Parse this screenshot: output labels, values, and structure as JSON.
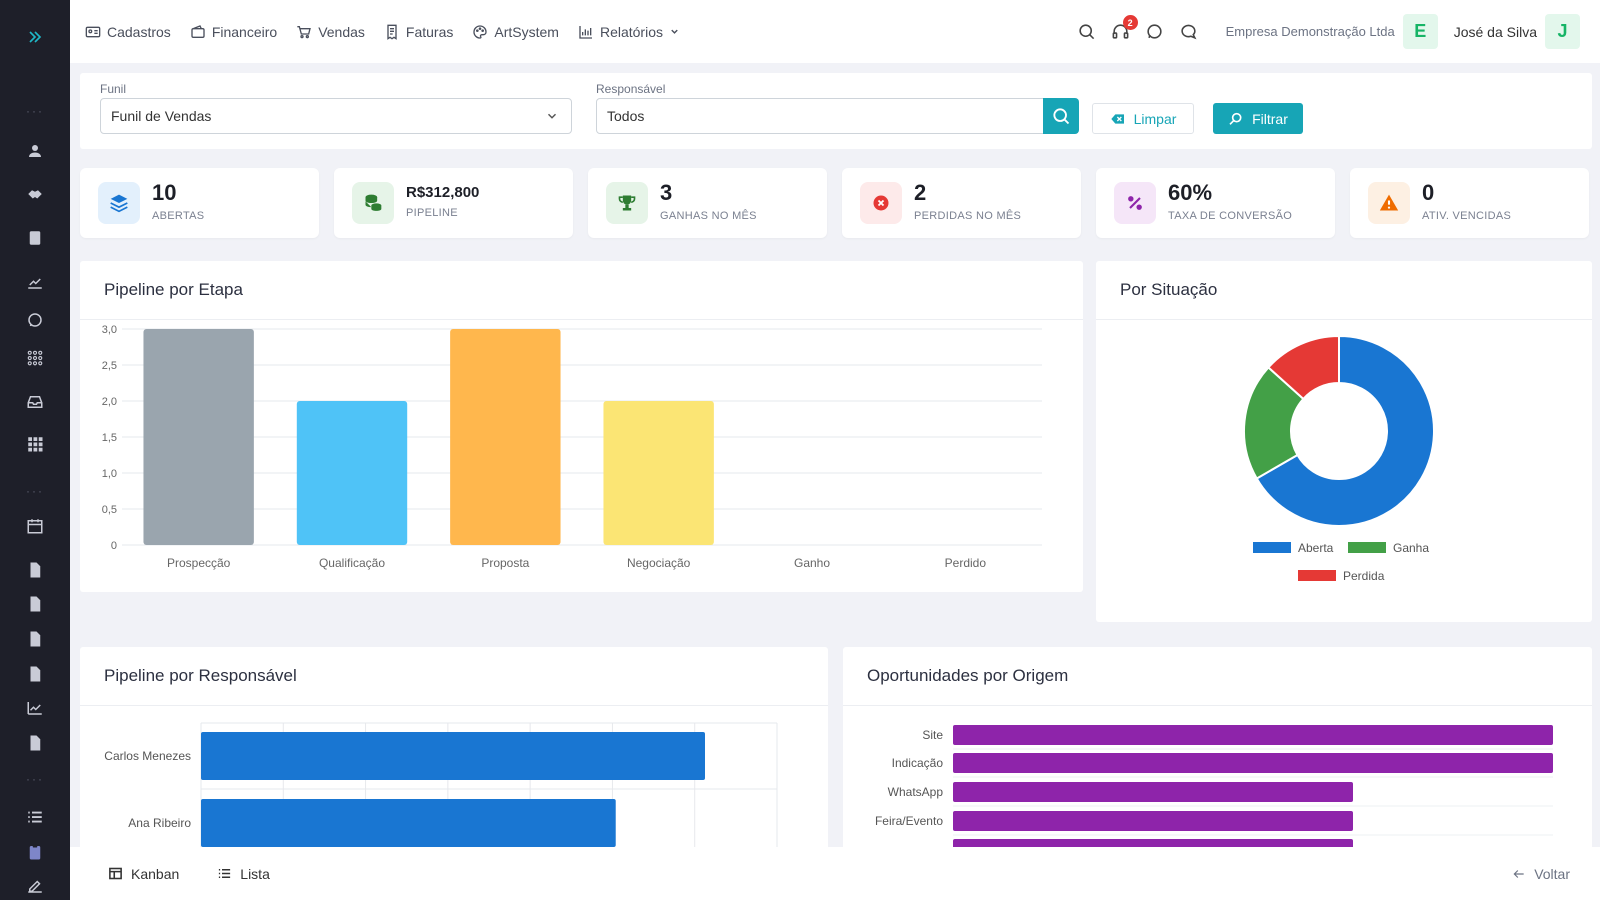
{
  "sidebar": {
    "items": [
      {
        "icon": "chevrons-right-icon"
      },
      {
        "icon": "user-icon"
      },
      {
        "icon": "handshake-icon"
      },
      {
        "icon": "book-icon"
      },
      {
        "icon": "chart-line-icon"
      },
      {
        "icon": "whatsapp-icon"
      },
      {
        "icon": "dots-grid-icon"
      },
      {
        "icon": "inbox-icon"
      },
      {
        "icon": "apps-grid-icon"
      },
      {
        "icon": "calendar-icon"
      },
      {
        "icon": "document-icon"
      },
      {
        "icon": "document-icon"
      },
      {
        "icon": "document-icon"
      },
      {
        "icon": "document-icon"
      },
      {
        "icon": "trend-icon"
      },
      {
        "icon": "document-icon"
      },
      {
        "icon": "list-icon"
      },
      {
        "icon": "clipboard-icon"
      },
      {
        "icon": "signature-icon"
      }
    ],
    "dots": "···"
  },
  "topnav": {
    "items": [
      {
        "label": "Cadastros",
        "icon": "id-card-icon"
      },
      {
        "label": "Financeiro",
        "icon": "wallet-icon"
      },
      {
        "label": "Vendas",
        "icon": "cart-icon"
      },
      {
        "label": "Faturas",
        "icon": "receipt-icon"
      },
      {
        "label": "ArtSystem",
        "icon": "palette-icon"
      },
      {
        "label": "Relatórios",
        "icon": "bar-chart-icon"
      }
    ],
    "notifications_count": "2",
    "company": "Empresa Demonstração Ltda",
    "company_initial": "E",
    "user": "José da Silva",
    "user_initial": "J"
  },
  "filters": {
    "funnel_label": "Funil",
    "funnel_value": "Funil de Vendas",
    "responsible_label": "Responsável",
    "responsible_value": "Todos",
    "clear_label": "Limpar",
    "filter_label": "Filtrar"
  },
  "kpis": [
    {
      "value": "10",
      "label": "ABERTAS",
      "icon": "layers-icon",
      "color": "#1976d2",
      "bg": "#e3f0fc"
    },
    {
      "value": "R$312,800",
      "label": "PIPELINE",
      "icon": "coins-icon",
      "color": "#2e7d32",
      "bg": "#e6f4e8"
    },
    {
      "value": "3",
      "label": "GANHAS NO MÊS",
      "icon": "trophy-icon",
      "color": "#2e7d32",
      "bg": "#e6f4e8"
    },
    {
      "value": "2",
      "label": "PERDIDAS NO MÊS",
      "icon": "x-circle-icon",
      "color": "#e53935",
      "bg": "#fdeaea"
    },
    {
      "value": "60%",
      "label": "TAXA DE CONVERSÃO",
      "icon": "percent-icon",
      "color": "#8e24aa",
      "bg": "#f5e6f8"
    },
    {
      "value": "0",
      "label": "ATIV. VENCIDAS",
      "icon": "warning-icon",
      "color": "#ef6c00",
      "bg": "#fdf0e3"
    }
  ],
  "panels": {
    "stage_title": "Pipeline por Etapa",
    "status_title": "Por Situação",
    "responsible_title": "Pipeline por Responsável",
    "origin_title": "Oportunidades por Origem"
  },
  "chart_data": [
    {
      "type": "bar",
      "categories": [
        "Prospecção",
        "Qualificação",
        "Proposta",
        "Negociação",
        "Ganho",
        "Perdido"
      ],
      "values": [
        3,
        2,
        3,
        2,
        0,
        0
      ],
      "colors": [
        "#9aa5ae",
        "#4fc3f7",
        "#ffb74d",
        "#fbe574",
        "#4caf50",
        "#e53935"
      ],
      "ylim": [
        0,
        3
      ],
      "yticks": [
        "0",
        "0,5",
        "1,0",
        "1,5",
        "2,0",
        "2,5",
        "3,0"
      ],
      "grid": true
    },
    {
      "type": "pie",
      "labels": [
        "Aberta",
        "Ganha",
        "Perdida"
      ],
      "values": [
        10,
        3,
        2
      ],
      "colors": [
        "#1976d2",
        "#43a047",
        "#e53935"
      ],
      "legend": "bottom"
    },
    {
      "type": "bar",
      "orientation": "horizontal",
      "categories": [
        "Carlos Menezes",
        "Ana Ribeiro"
      ],
      "values": [
        0.875,
        0.72
      ],
      "colors": [
        "#1976d2"
      ]
    },
    {
      "type": "bar",
      "orientation": "horizontal",
      "categories": [
        "Site",
        "Indicação",
        "WhatsApp",
        "Feira/Evento",
        ""
      ],
      "values": [
        3,
        3,
        2,
        2,
        2
      ],
      "colors": [
        "#8e24aa"
      ],
      "xlim": [
        0,
        3
      ]
    }
  ],
  "bottom": {
    "kanban_label": "Kanban",
    "list_label": "Lista",
    "back_label": "Voltar"
  }
}
